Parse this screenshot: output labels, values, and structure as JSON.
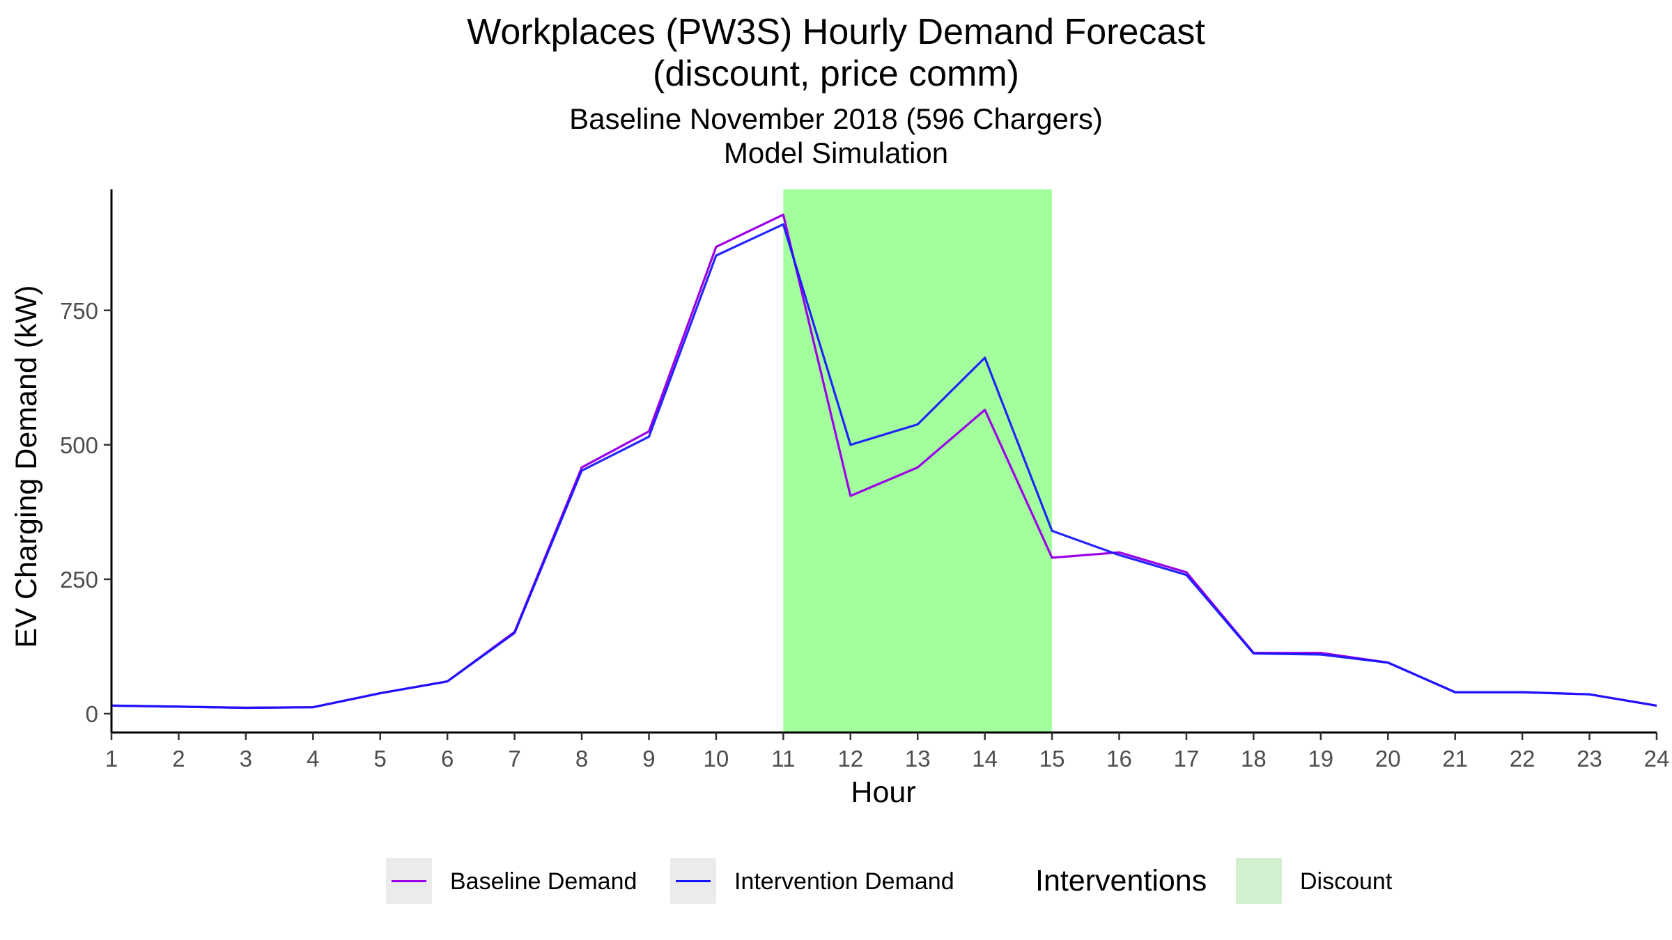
{
  "chart_data": {
    "type": "line",
    "title": [
      "Workplaces (PW3S) Hourly Demand Forecast",
      "(discount, price comm)"
    ],
    "subtitle": [
      "Baseline November 2018 (596 Chargers)",
      "Model Simulation"
    ],
    "xlabel": "Hour",
    "ylabel": "EV Charging Demand (kW)",
    "x": [
      1,
      2,
      3,
      4,
      5,
      6,
      7,
      8,
      9,
      10,
      11,
      12,
      13,
      14,
      15,
      16,
      17,
      18,
      19,
      20,
      21,
      22,
      23,
      24
    ],
    "x_ticks": [
      "1",
      "2",
      "3",
      "4",
      "5",
      "6",
      "7",
      "8",
      "9",
      "10",
      "11",
      "12",
      "13",
      "14",
      "15",
      "16",
      "17",
      "18",
      "19",
      "20",
      "21",
      "22",
      "23",
      "24"
    ],
    "xlim": [
      1,
      24
    ],
    "ylim": [
      -35,
      975
    ],
    "y_ticks": [
      0,
      250,
      500,
      750
    ],
    "y_tick_labels": [
      "0",
      "250",
      "500",
      "750"
    ],
    "series": [
      {
        "name": "Baseline Demand",
        "color": "#9b00e6",
        "values": [
          15,
          13,
          11,
          12,
          38,
          60,
          152,
          458,
          525,
          868,
          928,
          405,
          458,
          565,
          290,
          300,
          263,
          113,
          113,
          95,
          40,
          40,
          36,
          15
        ]
      },
      {
        "name": "Intervention Demand",
        "color": "#1414ff",
        "values": [
          15,
          13,
          11,
          12,
          38,
          60,
          150,
          452,
          515,
          852,
          910,
          500,
          538,
          662,
          340,
          295,
          258,
          112,
          110,
          95,
          40,
          40,
          36,
          15
        ]
      }
    ],
    "shaded_regions": [
      {
        "name": "Discount",
        "x_start": 11,
        "x_end": 15,
        "color": "#a3ff9e"
      }
    ],
    "grid": false,
    "legend": {
      "position": "bottom",
      "items": [
        "Baseline Demand",
        "Intervention Demand"
      ],
      "interventions_title": "Interventions",
      "interventions_items": [
        "Discount"
      ],
      "key_background": "#ebebeb",
      "discount_key_color": "#d2f0cf"
    }
  }
}
